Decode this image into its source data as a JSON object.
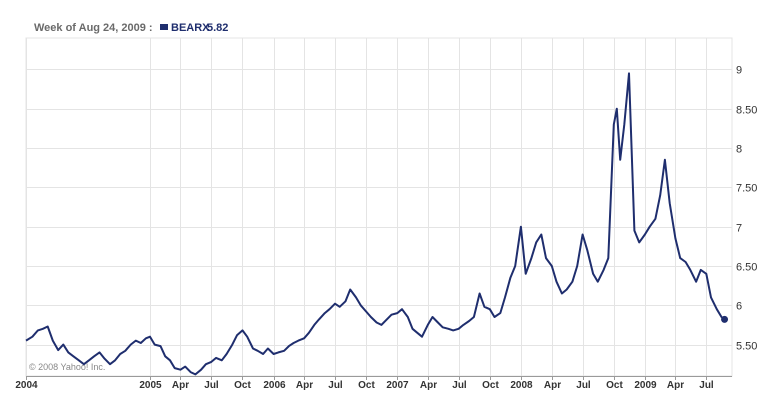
{
  "header": {
    "date_label": "Week of Aug 24, 2009 :",
    "symbol": "BEARX",
    "last_value": "5.82"
  },
  "copyright": "© 2008 Yahoo! Inc.",
  "colors": {
    "series": "#1f2e6e",
    "grid": "#e4e4e4",
    "axis": "#9a9a9a",
    "background": "#ffffff"
  },
  "chart_data": {
    "type": "line",
    "title": "",
    "xlabel": "",
    "ylabel": "",
    "ylim": [
      5.1,
      9.4
    ],
    "xlim": [
      "2004-01-01",
      "2009-09-15"
    ],
    "grid": true,
    "y_ticks": [
      {
        "value": 5.5,
        "label": "5.50"
      },
      {
        "value": 6,
        "label": "6"
      },
      {
        "value": 6.5,
        "label": "6.50"
      },
      {
        "value": 7,
        "label": "7"
      },
      {
        "value": 7.5,
        "label": "7.50"
      },
      {
        "value": 8,
        "label": "8"
      },
      {
        "value": 8.5,
        "label": "8.50"
      },
      {
        "value": 9,
        "label": "9"
      }
    ],
    "x_ticks": [
      {
        "date": "2004-01-01",
        "label": "2004"
      },
      {
        "date": "2005-01-01",
        "label": "2005"
      },
      {
        "date": "2005-04-01",
        "label": "Apr"
      },
      {
        "date": "2005-07-01",
        "label": "Jul"
      },
      {
        "date": "2005-10-01",
        "label": "Oct"
      },
      {
        "date": "2006-01-01",
        "label": "2006"
      },
      {
        "date": "2006-04-01",
        "label": "Apr"
      },
      {
        "date": "2006-07-01",
        "label": "Jul"
      },
      {
        "date": "2006-10-01",
        "label": "Oct"
      },
      {
        "date": "2007-01-01",
        "label": "2007"
      },
      {
        "date": "2007-04-01",
        "label": "Apr"
      },
      {
        "date": "2007-07-01",
        "label": "Jul"
      },
      {
        "date": "2007-10-01",
        "label": "Oct"
      },
      {
        "date": "2008-01-01",
        "label": "2008"
      },
      {
        "date": "2008-04-01",
        "label": "Apr"
      },
      {
        "date": "2008-07-01",
        "label": "Jul"
      },
      {
        "date": "2008-10-01",
        "label": "Oct"
      },
      {
        "date": "2009-01-01",
        "label": "2009"
      },
      {
        "date": "2009-04-01",
        "label": "Apr"
      },
      {
        "date": "2009-07-01",
        "label": "Jul"
      }
    ],
    "series": [
      {
        "name": "BEARX",
        "color": "#1f2e6e",
        "points": [
          [
            "2004-01-01",
            5.55
          ],
          [
            "2004-01-20",
            5.6
          ],
          [
            "2004-02-05",
            5.68
          ],
          [
            "2004-02-20",
            5.7
          ],
          [
            "2004-03-05",
            5.73
          ],
          [
            "2004-03-20",
            5.55
          ],
          [
            "2004-04-05",
            5.43
          ],
          [
            "2004-04-20",
            5.5
          ],
          [
            "2004-05-05",
            5.4
          ],
          [
            "2004-05-20",
            5.35
          ],
          [
            "2004-06-05",
            5.3
          ],
          [
            "2004-06-20",
            5.25
          ],
          [
            "2004-07-05",
            5.3
          ],
          [
            "2004-07-20",
            5.35
          ],
          [
            "2004-08-05",
            5.4
          ],
          [
            "2004-08-20",
            5.32
          ],
          [
            "2004-09-05",
            5.25
          ],
          [
            "2004-09-20",
            5.3
          ],
          [
            "2004-10-05",
            5.38
          ],
          [
            "2004-10-20",
            5.42
          ],
          [
            "2004-11-05",
            5.5
          ],
          [
            "2004-11-20",
            5.55
          ],
          [
            "2004-12-05",
            5.52
          ],
          [
            "2004-12-20",
            5.58
          ],
          [
            "2005-01-01",
            5.6
          ],
          [
            "2005-01-15",
            5.5
          ],
          [
            "2005-02-01",
            5.48
          ],
          [
            "2005-02-15",
            5.35
          ],
          [
            "2005-03-01",
            5.3
          ],
          [
            "2005-03-15",
            5.2
          ],
          [
            "2005-04-01",
            5.18
          ],
          [
            "2005-04-15",
            5.22
          ],
          [
            "2005-05-01",
            5.15
          ],
          [
            "2005-05-15",
            5.12
          ],
          [
            "2005-06-01",
            5.18
          ],
          [
            "2005-06-15",
            5.25
          ],
          [
            "2005-07-01",
            5.28
          ],
          [
            "2005-07-15",
            5.33
          ],
          [
            "2005-08-01",
            5.3
          ],
          [
            "2005-08-15",
            5.38
          ],
          [
            "2005-09-01",
            5.5
          ],
          [
            "2005-09-15",
            5.62
          ],
          [
            "2005-10-01",
            5.68
          ],
          [
            "2005-10-15",
            5.6
          ],
          [
            "2005-11-01",
            5.45
          ],
          [
            "2005-11-15",
            5.42
          ],
          [
            "2005-12-01",
            5.38
          ],
          [
            "2005-12-15",
            5.45
          ],
          [
            "2006-01-01",
            5.38
          ],
          [
            "2006-01-15",
            5.4
          ],
          [
            "2006-02-01",
            5.42
          ],
          [
            "2006-02-15",
            5.48
          ],
          [
            "2006-03-01",
            5.52
          ],
          [
            "2006-03-15",
            5.55
          ],
          [
            "2006-04-01",
            5.58
          ],
          [
            "2006-04-15",
            5.65
          ],
          [
            "2006-05-01",
            5.75
          ],
          [
            "2006-05-15",
            5.82
          ],
          [
            "2006-06-01",
            5.9
          ],
          [
            "2006-06-15",
            5.95
          ],
          [
            "2006-07-01",
            6.02
          ],
          [
            "2006-07-15",
            5.98
          ],
          [
            "2006-08-01",
            6.05
          ],
          [
            "2006-08-15",
            6.2
          ],
          [
            "2006-09-01",
            6.1
          ],
          [
            "2006-09-15",
            6.0
          ],
          [
            "2006-10-01",
            5.92
          ],
          [
            "2006-10-15",
            5.85
          ],
          [
            "2006-11-01",
            5.78
          ],
          [
            "2006-11-15",
            5.75
          ],
          [
            "2006-12-01",
            5.82
          ],
          [
            "2006-12-15",
            5.88
          ],
          [
            "2007-01-01",
            5.9
          ],
          [
            "2007-01-15",
            5.95
          ],
          [
            "2007-02-01",
            5.85
          ],
          [
            "2007-02-15",
            5.7
          ],
          [
            "2007-03-01",
            5.65
          ],
          [
            "2007-03-15",
            5.6
          ],
          [
            "2007-04-01",
            5.75
          ],
          [
            "2007-04-15",
            5.85
          ],
          [
            "2007-05-01",
            5.78
          ],
          [
            "2007-05-15",
            5.72
          ],
          [
            "2007-06-01",
            5.7
          ],
          [
            "2007-06-15",
            5.68
          ],
          [
            "2007-07-01",
            5.7
          ],
          [
            "2007-07-15",
            5.75
          ],
          [
            "2007-08-01",
            5.8
          ],
          [
            "2007-08-15",
            5.85
          ],
          [
            "2007-09-01",
            6.15
          ],
          [
            "2007-09-15",
            5.98
          ],
          [
            "2007-10-01",
            5.95
          ],
          [
            "2007-10-15",
            5.85
          ],
          [
            "2007-11-01",
            5.9
          ],
          [
            "2007-11-15",
            6.1
          ],
          [
            "2007-12-01",
            6.35
          ],
          [
            "2007-12-15",
            6.5
          ],
          [
            "2008-01-01",
            7.0
          ],
          [
            "2008-01-15",
            6.4
          ],
          [
            "2008-02-01",
            6.6
          ],
          [
            "2008-02-15",
            6.8
          ],
          [
            "2008-03-01",
            6.9
          ],
          [
            "2008-03-15",
            6.6
          ],
          [
            "2008-04-01",
            6.5
          ],
          [
            "2008-04-15",
            6.3
          ],
          [
            "2008-05-01",
            6.15
          ],
          [
            "2008-05-15",
            6.2
          ],
          [
            "2008-06-01",
            6.3
          ],
          [
            "2008-06-15",
            6.5
          ],
          [
            "2008-07-01",
            6.9
          ],
          [
            "2008-07-15",
            6.7
          ],
          [
            "2008-08-01",
            6.4
          ],
          [
            "2008-08-15",
            6.3
          ],
          [
            "2008-09-01",
            6.45
          ],
          [
            "2008-09-15",
            6.6
          ],
          [
            "2008-10-01",
            8.3
          ],
          [
            "2008-10-10",
            8.5
          ],
          [
            "2008-10-20",
            7.85
          ],
          [
            "2008-11-01",
            8.3
          ],
          [
            "2008-11-15",
            8.95
          ],
          [
            "2008-12-01",
            6.95
          ],
          [
            "2008-12-15",
            6.8
          ],
          [
            "2009-01-01",
            6.9
          ],
          [
            "2009-01-15",
            7.0
          ],
          [
            "2009-02-01",
            7.1
          ],
          [
            "2009-02-15",
            7.4
          ],
          [
            "2009-03-01",
            7.85
          ],
          [
            "2009-03-15",
            7.3
          ],
          [
            "2009-04-01",
            6.85
          ],
          [
            "2009-04-15",
            6.6
          ],
          [
            "2009-05-01",
            6.55
          ],
          [
            "2009-05-15",
            6.45
          ],
          [
            "2009-06-01",
            6.3
          ],
          [
            "2009-06-15",
            6.45
          ],
          [
            "2009-07-01",
            6.4
          ],
          [
            "2009-07-15",
            6.1
          ],
          [
            "2009-08-01",
            5.95
          ],
          [
            "2009-08-15",
            5.85
          ],
          [
            "2009-08-24",
            5.82
          ]
        ]
      }
    ]
  }
}
